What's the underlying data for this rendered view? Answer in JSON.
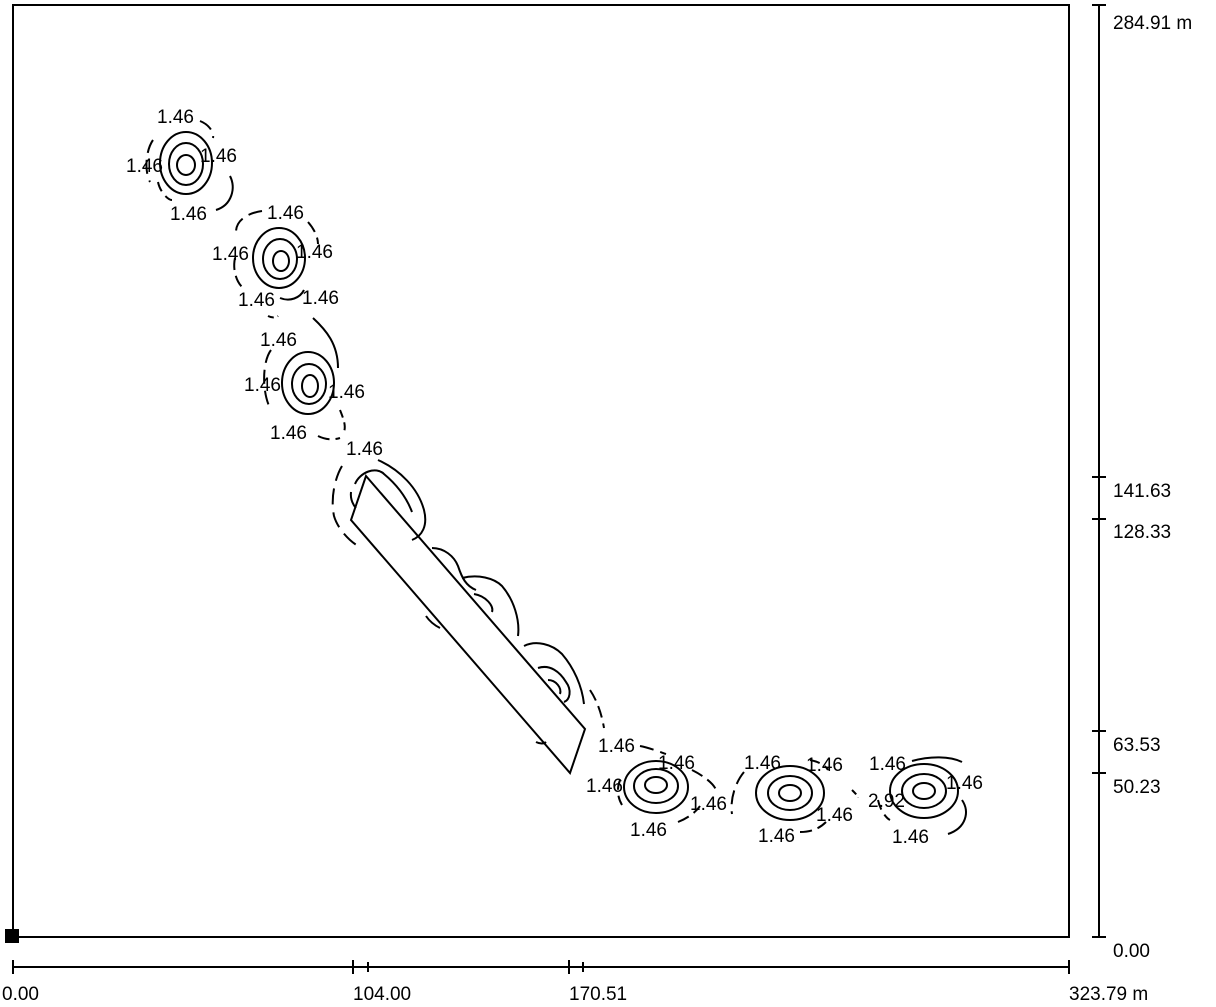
{
  "diagram": {
    "type": "isolux-contour-plot",
    "line_color": "#000000",
    "background": "#ffffff"
  },
  "x_axis": {
    "ticks": [
      "0.00",
      "104.00",
      "170.51",
      "323.79 m"
    ]
  },
  "y_axis": {
    "ticks": [
      "284.91 m",
      "141.63",
      "128.33",
      "63.53",
      "50.23",
      "0.00"
    ]
  },
  "contour_labels": [
    "1.46",
    "1.46",
    "1.46",
    "1.46",
    "1.46",
    "1.46",
    "1.46",
    "1.46",
    "1.46",
    "1.46",
    "1.46",
    "1.46",
    "1.46",
    "1.46",
    "1.46",
    "1.46",
    "1.46",
    "1.46",
    "1.46",
    "1.46",
    "1.46",
    "1.46",
    "1.46",
    "1.46",
    "1.46",
    "2.92",
    "1.46",
    "1.46"
  ]
}
